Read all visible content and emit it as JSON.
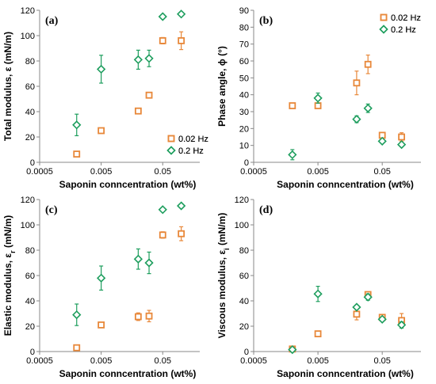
{
  "colors": {
    "series_0.02": "#E8883A",
    "series_0.2": "#1E9E5E"
  },
  "chart_data": [
    {
      "type": "scatter",
      "panel": "(a)",
      "xlabel": "Saponin conncentration (wt%)",
      "ylabel": "Total modulus, ε (mN/m)",
      "xscale": "log",
      "xlim": [
        0.0005,
        0.2
      ],
      "xticks": [
        "0.0005",
        "0.005",
        "0.05"
      ],
      "xtick_values": [
        0.0005,
        0.005,
        0.05
      ],
      "ylim": [
        0,
        120
      ],
      "yticks": [
        0,
        20,
        40,
        60,
        80,
        100,
        120
      ],
      "legend_position": "lower-right",
      "series": [
        {
          "name": "0.02 Hz",
          "marker": "square",
          "color": "#E8883A",
          "x": [
            0.002,
            0.005,
            0.02,
            0.03,
            0.05,
            0.1
          ],
          "y": [
            6.5,
            25,
            40.5,
            53,
            96,
            96
          ],
          "err": [
            0,
            0,
            0,
            0,
            2.5,
            7
          ]
        },
        {
          "name": "0.2 Hz",
          "marker": "diamond",
          "color": "#1E9E5E",
          "x": [
            0.002,
            0.005,
            0.02,
            0.03,
            0.05,
            0.1
          ],
          "y": [
            29.5,
            73.5,
            81,
            82,
            115,
            117
          ],
          "err": [
            8.5,
            11,
            7.5,
            6.5,
            1.5,
            0
          ]
        }
      ]
    },
    {
      "type": "scatter",
      "panel": "(b)",
      "xlabel": "Saponin conncentration (wt%)",
      "ylabel": "Phase angle, ϕ (°)",
      "xscale": "log",
      "xlim": [
        0.0005,
        0.2
      ],
      "xticks": [
        "0.0005",
        "0.005",
        "0.05"
      ],
      "xtick_values": [
        0.0005,
        0.005,
        0.05
      ],
      "ylim": [
        0,
        90
      ],
      "yticks": [
        0,
        10,
        20,
        30,
        40,
        50,
        60,
        70,
        80,
        90
      ],
      "legend_position": "top-right",
      "series": [
        {
          "name": "0.02 Hz",
          "marker": "square",
          "color": "#E8883A",
          "x": [
            0.002,
            0.005,
            0.02,
            0.03,
            0.05,
            0.1
          ],
          "y": [
            33.5,
            33.5,
            47,
            58,
            16,
            15
          ],
          "err": [
            1.5,
            1.5,
            7,
            5.5,
            1.5,
            2.5
          ]
        },
        {
          "name": "0.2 Hz",
          "marker": "diamond",
          "color": "#1E9E5E",
          "x": [
            0.002,
            0.005,
            0.02,
            0.03,
            0.05,
            0.1
          ],
          "y": [
            4.5,
            38,
            25.5,
            32,
            12.5,
            10.5
          ],
          "err": [
            3,
            3,
            2,
            2.5,
            1,
            1
          ]
        }
      ]
    },
    {
      "type": "scatter",
      "panel": "(c)",
      "xlabel": "Saponin conncentration (wt%)",
      "ylabel": "Elastic modulus, εr (mN/m)",
      "ylabel_main": "Elastic modulus, ε",
      "ylabel_sub": "r",
      "ylabel_tail": " (mN/m)",
      "xscale": "log",
      "xlim": [
        0.0005,
        0.2
      ],
      "xticks": [
        "0.0005",
        "0.005",
        "0.05"
      ],
      "xtick_values": [
        0.0005,
        0.005,
        0.05
      ],
      "ylim": [
        0,
        120
      ],
      "yticks": [
        0,
        20,
        40,
        60,
        80,
        100,
        120
      ],
      "legend_position": "lower-right",
      "series": [
        {
          "name": "0.02 Hz",
          "marker": "square",
          "color": "#E8883A",
          "x": [
            0.002,
            0.005,
            0.02,
            0.03,
            0.05,
            0.1
          ],
          "y": [
            3,
            21,
            27.5,
            28,
            92,
            93
          ],
          "err": [
            0,
            2,
            3,
            4.5,
            2.5,
            5.5
          ]
        },
        {
          "name": "0.2 Hz",
          "marker": "diamond",
          "color": "#1E9E5E",
          "x": [
            0.002,
            0.005,
            0.02,
            0.03,
            0.05,
            0.1
          ],
          "y": [
            29,
            58,
            73,
            70,
            112,
            115
          ],
          "err": [
            8.5,
            9.5,
            8,
            8.5,
            1,
            0
          ]
        }
      ]
    },
    {
      "type": "scatter",
      "panel": "(d)",
      "xlabel": "Saponin conncentration (wt%)",
      "ylabel": "Viscous modulus, εi (mN/m)",
      "ylabel_main": "Viscous modulus, ε",
      "ylabel_sub": "i",
      "ylabel_tail": " (mN/m)",
      "xscale": "log",
      "xlim": [
        0.0005,
        0.2
      ],
      "xticks": [
        "0.0005",
        "0.005",
        "0.05"
      ],
      "xtick_values": [
        0.0005,
        0.005,
        0.05
      ],
      "ylim": [
        0,
        120
      ],
      "yticks": [
        0,
        20,
        40,
        60,
        80,
        100,
        120
      ],
      "legend_position": "top-right",
      "series": [
        {
          "name": "0.02 Hz",
          "marker": "square",
          "color": "#E8883A",
          "x": [
            0.002,
            0.005,
            0.02,
            0.03,
            0.05,
            0.1
          ],
          "y": [
            2,
            14,
            29.5,
            45,
            27,
            24.5
          ],
          "err": [
            0,
            0,
            4.5,
            1.5,
            2,
            5.5
          ]
        },
        {
          "name": "0.2 Hz",
          "marker": "diamond",
          "color": "#1E9E5E",
          "x": [
            0.002,
            0.005,
            0.02,
            0.03,
            0.05,
            0.1
          ],
          "y": [
            1.5,
            45.5,
            35,
            43,
            25.5,
            21
          ],
          "err": [
            0,
            6,
            0,
            2.5,
            1.5,
            2.5
          ]
        }
      ]
    }
  ]
}
